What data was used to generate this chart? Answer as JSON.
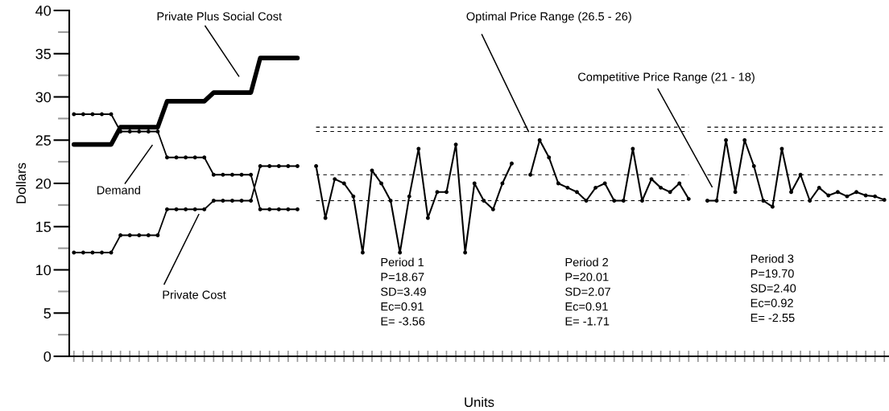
{
  "chart_data": {
    "type": "line",
    "xlabel": "Units",
    "ylabel": "Dollars",
    "ylim": [
      0,
      40
    ],
    "yticks": [
      0,
      {
        "value": 2.5,
        "label": null
      },
      5,
      {
        "value": 7.5,
        "label": null
      },
      10,
      {
        "value": 12.5,
        "label": null
      },
      15,
      {
        "value": 17.5,
        "label": null
      },
      20,
      {
        "value": 22.5,
        "label": null
      },
      25,
      {
        "value": 27.5,
        "label": null
      },
      30,
      {
        "value": 32.5,
        "label": null
      },
      35,
      {
        "value": 37.5,
        "label": null
      },
      40
    ],
    "categories": [
      null,
      null,
      null,
      null,
      null,
      null,
      null,
      null,
      null,
      null,
      null,
      null,
      null,
      null,
      null,
      null,
      null,
      null,
      null,
      null,
      null,
      null,
      null,
      null,
      null,
      null,
      null,
      null,
      null,
      null,
      null,
      null,
      null,
      null,
      null,
      null,
      null,
      null,
      null,
      null,
      null,
      null,
      null,
      null,
      null,
      null,
      null,
      null,
      null,
      null,
      null,
      null,
      null,
      null,
      null,
      null,
      null,
      null,
      null,
      null,
      null,
      null,
      null,
      null,
      null,
      null,
      null,
      null,
      null,
      null,
      null,
      null,
      null,
      null,
      null,
      null,
      null,
      null,
      null,
      null,
      null,
      null,
      null,
      null,
      null,
      null,
      null,
      null
    ],
    "grid": false,
    "series": [
      {
        "color": "#000000",
        "marker": "circle",
        "line_style": "solid",
        "values": [
          28,
          28,
          28,
          28,
          28,
          26,
          26,
          26,
          26,
          26,
          23,
          23,
          23,
          23,
          23,
          21,
          21,
          21,
          21,
          21,
          17,
          17,
          17,
          17,
          17,
          null,
          null,
          null,
          null,
          null,
          null,
          null,
          null,
          null,
          null,
          null,
          null,
          null,
          null,
          null,
          null,
          null,
          null,
          null,
          null,
          null,
          null,
          null,
          null,
          null,
          null,
          null,
          null,
          null,
          null,
          null,
          null,
          null,
          null,
          null,
          null,
          null,
          null,
          null,
          null,
          null,
          null,
          null,
          null,
          null,
          null,
          null,
          null,
          null,
          null,
          null,
          null,
          null,
          null,
          null,
          null,
          null,
          null,
          null,
          null,
          null,
          null,
          null
        ]
      },
      {
        "color": "#000000",
        "marker": "circle",
        "line_style": "solid",
        "values": [
          12,
          12,
          12,
          12,
          12,
          14,
          14,
          14,
          14,
          14,
          17,
          17,
          17,
          17,
          17,
          18,
          18,
          18,
          18,
          18,
          22,
          22,
          22,
          22,
          22,
          null,
          null,
          null,
          null,
          null,
          null,
          null,
          null,
          null,
          null,
          null,
          null,
          null,
          null,
          null,
          null,
          null,
          null,
          null,
          null,
          null,
          null,
          null,
          null,
          null,
          null,
          null,
          null,
          null,
          null,
          null,
          null,
          null,
          null,
          null,
          null,
          null,
          null,
          null,
          null,
          null,
          null,
          null,
          null,
          null,
          null,
          null,
          null,
          null,
          null,
          null,
          null,
          null,
          null,
          null,
          null,
          null,
          null,
          null,
          null,
          null,
          null,
          null
        ]
      },
      {
        "color": "#000000",
        "marker": "none",
        "line_style": "solid",
        "values": [
          24.5,
          24.5,
          24.5,
          24.5,
          24.5,
          26.5,
          26.5,
          26.5,
          26.5,
          26.5,
          29.5,
          29.5,
          29.5,
          29.5,
          29.5,
          30.5,
          30.5,
          30.5,
          30.5,
          30.5,
          34.5,
          34.5,
          34.5,
          34.5,
          34.5,
          null,
          null,
          null,
          null,
          null,
          null,
          null,
          null,
          null,
          null,
          null,
          null,
          null,
          null,
          null,
          null,
          null,
          null,
          null,
          null,
          null,
          null,
          null,
          null,
          null,
          null,
          null,
          null,
          null,
          null,
          null,
          null,
          null,
          null,
          null,
          null,
          null,
          null,
          null,
          null,
          null,
          null,
          null,
          null,
          null,
          null,
          null,
          null,
          null,
          null,
          null,
          null,
          null,
          null,
          null,
          null,
          null,
          null,
          null,
          null,
          null,
          null,
          null
        ]
      },
      {
        "color": "#000000",
        "marker": "circle",
        "line_style": "solid",
        "values": [
          null,
          null,
          null,
          null,
          null,
          null,
          null,
          null,
          null,
          null,
          null,
          null,
          null,
          null,
          null,
          null,
          null,
          null,
          null,
          null,
          null,
          null,
          null,
          null,
          null,
          null,
          22,
          16,
          20.5,
          20,
          18.5,
          12,
          21.5,
          20,
          18,
          12,
          18.5,
          24,
          16,
          19,
          19,
          24.5,
          12,
          20,
          18,
          17,
          20,
          22.3,
          null,
          null,
          null,
          null,
          null,
          null,
          null,
          null,
          null,
          null,
          null,
          null,
          null,
          null,
          null,
          null,
          null,
          null,
          null,
          null,
          null,
          null,
          null,
          null,
          null,
          null,
          null,
          null,
          null,
          null,
          null,
          null,
          null,
          null,
          null,
          null,
          null,
          null,
          null,
          null
        ]
      },
      {
        "color": "#000000",
        "marker": "circle",
        "line_style": "solid",
        "values": [
          null,
          null,
          null,
          null,
          null,
          null,
          null,
          null,
          null,
          null,
          null,
          null,
          null,
          null,
          null,
          null,
          null,
          null,
          null,
          null,
          null,
          null,
          null,
          null,
          null,
          null,
          null,
          null,
          null,
          null,
          null,
          null,
          null,
          null,
          null,
          null,
          null,
          null,
          null,
          null,
          null,
          null,
          null,
          null,
          null,
          null,
          null,
          null,
          null,
          21,
          25,
          23,
          20,
          19.5,
          19,
          18,
          19.5,
          20,
          18,
          18,
          24,
          18,
          20.5,
          19.5,
          19,
          20,
          18.2,
          null,
          null,
          null,
          null,
          null,
          null,
          null,
          null,
          null,
          null,
          null,
          null,
          null,
          null,
          null,
          null,
          null,
          null,
          null,
          null,
          null
        ]
      },
      {
        "color": "#000000",
        "marker": "circle",
        "line_style": "solid",
        "values": [
          null,
          null,
          null,
          null,
          null,
          null,
          null,
          null,
          null,
          null,
          null,
          null,
          null,
          null,
          null,
          null,
          null,
          null,
          null,
          null,
          null,
          null,
          null,
          null,
          null,
          null,
          null,
          null,
          null,
          null,
          null,
          null,
          null,
          null,
          null,
          null,
          null,
          null,
          null,
          null,
          null,
          null,
          null,
          null,
          null,
          null,
          null,
          null,
          null,
          null,
          null,
          null,
          null,
          null,
          null,
          null,
          null,
          null,
          null,
          null,
          null,
          null,
          null,
          null,
          null,
          null,
          null,
          null,
          18,
          18,
          25,
          19,
          25,
          22,
          18,
          17.3,
          24,
          19,
          21,
          18,
          19.5,
          18.6,
          19,
          18.5,
          19,
          18.6,
          18.5,
          18.1
        ]
      },
      {
        "color": "#000000",
        "marker": "none",
        "line_style": "dashed",
        "values": [
          null,
          null,
          null,
          null,
          null,
          null,
          null,
          null,
          null,
          null,
          null,
          null,
          null,
          null,
          null,
          null,
          null,
          null,
          null,
          null,
          null,
          null,
          null,
          null,
          null,
          null,
          26.5,
          26.5,
          26.5,
          26.5,
          26.5,
          26.5,
          26.5,
          26.5,
          26.5,
          26.5,
          26.5,
          26.5,
          26.5,
          26.5,
          26.5,
          26.5,
          26.5,
          26.5,
          26.5,
          26.5,
          26.5,
          26.5,
          26.5,
          26.5,
          26.5,
          26.5,
          26.5,
          26.5,
          26.5,
          26.5,
          26.5,
          26.5,
          26.5,
          26.5,
          26.5,
          26.5,
          26.5,
          26.5,
          26.5,
          26.5,
          26.5,
          null,
          26.5,
          26.5,
          26.5,
          26.5,
          26.5,
          26.5,
          26.5,
          26.5,
          26.5,
          26.5,
          26.5,
          26.5,
          26.5,
          26.5,
          26.5,
          26.5,
          26.5,
          26.5,
          26.5,
          26.5
        ]
      },
      {
        "color": "#000000",
        "marker": "none",
        "line_style": "dashed",
        "values": [
          null,
          null,
          null,
          null,
          null,
          null,
          null,
          null,
          null,
          null,
          null,
          null,
          null,
          null,
          null,
          null,
          null,
          null,
          null,
          null,
          null,
          null,
          null,
          null,
          null,
          null,
          26,
          26,
          26,
          26,
          26,
          26,
          26,
          26,
          26,
          26,
          26,
          26,
          26,
          26,
          26,
          26,
          26,
          26,
          26,
          26,
          26,
          26,
          26,
          26,
          26,
          26,
          26,
          26,
          26,
          26,
          26,
          26,
          26,
          26,
          26,
          26,
          26,
          26,
          26,
          26,
          26,
          null,
          26,
          26,
          26,
          26,
          26,
          26,
          26,
          26,
          26,
          26,
          26,
          26,
          26,
          26,
          26,
          26,
          26,
          26,
          26,
          26
        ]
      },
      {
        "color": "#000000",
        "marker": "none",
        "line_style": "dashed",
        "values": [
          null,
          null,
          null,
          null,
          null,
          null,
          null,
          null,
          null,
          null,
          null,
          null,
          null,
          null,
          null,
          null,
          null,
          null,
          null,
          null,
          null,
          null,
          null,
          null,
          null,
          null,
          21,
          21,
          21,
          21,
          21,
          21,
          21,
          21,
          21,
          21,
          21,
          21,
          21,
          21,
          21,
          21,
          21,
          21,
          21,
          21,
          21,
          21,
          21,
          21,
          21,
          21,
          21,
          21,
          21,
          21,
          21,
          21,
          21,
          21,
          21,
          21,
          21,
          21,
          21,
          21,
          21,
          null,
          21,
          21,
          21,
          21,
          21,
          21,
          21,
          21,
          21,
          21,
          21,
          21,
          21,
          21,
          21,
          21,
          21,
          21,
          21,
          21
        ]
      },
      {
        "color": "#000000",
        "marker": "none",
        "line_style": "dashed",
        "values": [
          null,
          null,
          null,
          null,
          null,
          null,
          null,
          null,
          null,
          null,
          null,
          null,
          null,
          null,
          null,
          null,
          null,
          null,
          null,
          null,
          null,
          null,
          null,
          null,
          null,
          null,
          18,
          18,
          18,
          18,
          18,
          18,
          18,
          18,
          18,
          18,
          18,
          18,
          18,
          18,
          18,
          18,
          18,
          18,
          18,
          18,
          18,
          18,
          18,
          18,
          18,
          18,
          18,
          18,
          18,
          18,
          18,
          18,
          18,
          18,
          18,
          18,
          18,
          18,
          18,
          18,
          18,
          null,
          18,
          18,
          18,
          18,
          18,
          18,
          18,
          18,
          18,
          18,
          18,
          18,
          18,
          18,
          18,
          18,
          18,
          18,
          18,
          18
        ]
      }
    ],
    "annotations": [
      "Private Plus Social Cost",
      "Demand",
      "Private Cost",
      "Optimal Price Range (26.5 - 26)",
      "Competitive Price Range (21 - 18)",
      "Period 1\nP=18.67\nSD=3.49\nEc=0.91\nE= -3.56",
      "Period 2\nP=20.01\nSD=2.07\nEc=0.91\nE= -1.71",
      "Period 3\nP=19.70\nSD=2.40\nEc=0.92\nE= -2.55"
    ]
  }
}
